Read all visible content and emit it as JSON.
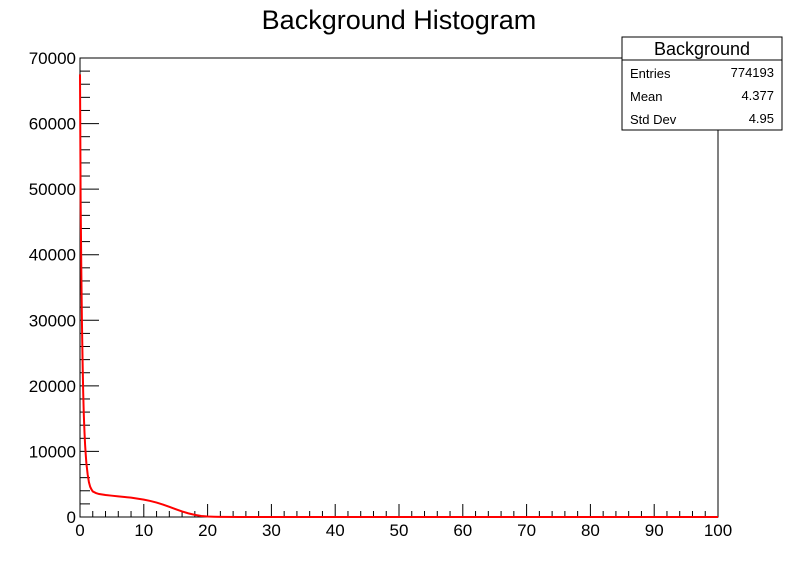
{
  "chart_data": {
    "type": "histogram",
    "title": "Background Histogram",
    "xlabel": "",
    "ylabel": "",
    "xlim": [
      0,
      100
    ],
    "ylim": [
      0,
      70000
    ],
    "x_ticks": [
      "0",
      "10",
      "20",
      "30",
      "40",
      "50",
      "60",
      "70",
      "80",
      "90",
      "100"
    ],
    "y_ticks": [
      "0",
      "10000",
      "20000",
      "30000",
      "40000",
      "50000",
      "60000",
      "70000"
    ],
    "grid": false,
    "line_color": "#ff0000",
    "series": [
      {
        "x": [
          0,
          0.1,
          0.2,
          0.3,
          0.4,
          0.5,
          0.6,
          0.7,
          0.8,
          0.9,
          1.0,
          1.2,
          1.4,
          1.6,
          1.8,
          2.0,
          2.5,
          3,
          4,
          5,
          6,
          7,
          8,
          9,
          10,
          11,
          12,
          13,
          14,
          15,
          16,
          17,
          18,
          19,
          20,
          21,
          22,
          25,
          30,
          40,
          50,
          60,
          70,
          80,
          90,
          100
        ],
        "y": [
          67500,
          48000,
          38000,
          30000,
          24000,
          19000,
          15500,
          13000,
          11000,
          9500,
          8200,
          6500,
          5300,
          4600,
          4200,
          3900,
          3650,
          3500,
          3350,
          3250,
          3150,
          3050,
          2950,
          2800,
          2650,
          2450,
          2200,
          1900,
          1550,
          1200,
          850,
          550,
          320,
          160,
          70,
          30,
          12,
          5,
          2,
          0,
          0,
          0,
          0,
          0,
          0,
          0
        ]
      }
    ],
    "stats_box": {
      "title": "Background",
      "rows": [
        {
          "label": "Entries",
          "value": "774193"
        },
        {
          "label": "Mean",
          "value": "4.377"
        },
        {
          "label": "Std Dev",
          "value": "4.95"
        }
      ]
    }
  }
}
